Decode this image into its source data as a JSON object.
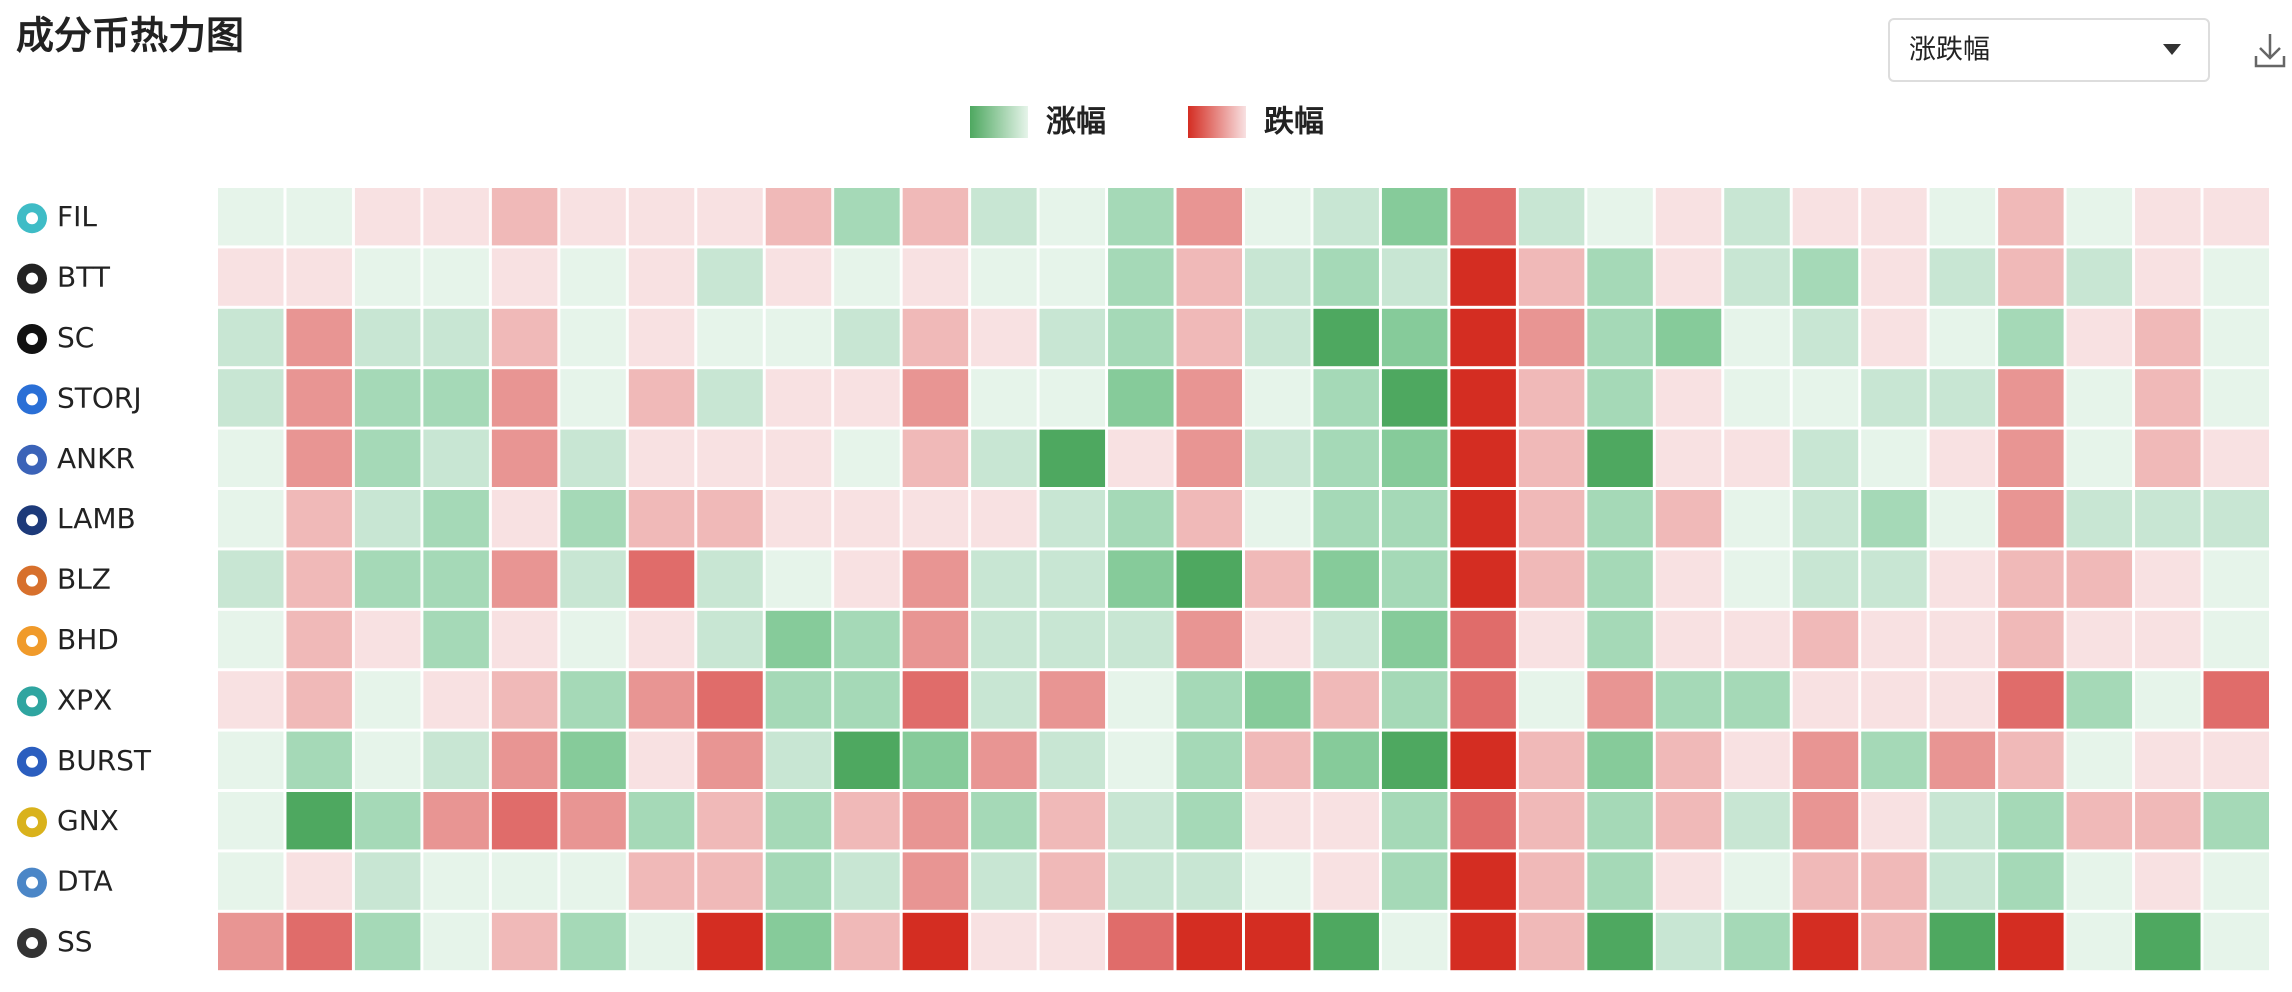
{
  "header": {
    "title": "成分币热力图"
  },
  "dropdown": {
    "selected": "涨跌幅"
  },
  "legend": {
    "items": [
      {
        "label": "涨幅",
        "colors": [
          "#4ea860",
          "#e6f4ea"
        ]
      },
      {
        "label": "跌幅",
        "colors": [
          "#d42d22",
          "#f8e1e2"
        ]
      }
    ]
  },
  "heatmap": {
    "colors": {
      "-5": "#d42d22",
      "-4": "#e06c6a",
      "-3": "#e89593",
      "-2": "#f0b9b8",
      "-1": "#f8e1e2",
      "1": "#e6f4ea",
      "2": "#c8e6d3",
      "3": "#a5d9b7",
      "4": "#86cb9a",
      "5": "#4ea860"
    },
    "rows": [
      {
        "name": "FIL",
        "values": [
          1,
          1,
          -1,
          -1,
          -2,
          -1,
          -1,
          -1,
          -2,
          3,
          -2,
          2,
          1,
          3,
          -3,
          1,
          2,
          4,
          -4,
          2,
          1,
          -1,
          2,
          -1,
          -1,
          1,
          -2,
          1,
          -1,
          -1
        ]
      },
      {
        "name": "BTT",
        "values": [
          -1,
          -1,
          1,
          1,
          -1,
          1,
          -1,
          2,
          -1,
          1,
          -1,
          1,
          1,
          3,
          -2,
          2,
          3,
          2,
          -5,
          -2,
          3,
          -1,
          2,
          3,
          -1,
          2,
          -2,
          2,
          -1,
          1
        ]
      },
      {
        "name": "SC",
        "values": [
          2,
          -3,
          2,
          2,
          -2,
          1,
          -1,
          1,
          1,
          2,
          -2,
          -1,
          2,
          3,
          -2,
          2,
          5,
          4,
          -5,
          -3,
          3,
          4,
          1,
          2,
          -1,
          1,
          3,
          -1,
          -2,
          1
        ]
      },
      {
        "name": "STORJ",
        "values": [
          2,
          -3,
          3,
          3,
          -3,
          1,
          -2,
          2,
          -1,
          -1,
          -3,
          1,
          1,
          4,
          -3,
          1,
          3,
          5,
          -5,
          -2,
          3,
          -1,
          1,
          1,
          2,
          2,
          -3,
          1,
          -2,
          1
        ]
      },
      {
        "name": "ANKR",
        "values": [
          1,
          -3,
          3,
          2,
          -3,
          2,
          -1,
          -1,
          -1,
          1,
          -2,
          2,
          5,
          -1,
          -3,
          2,
          3,
          4,
          -5,
          -2,
          5,
          -1,
          -1,
          2,
          1,
          -1,
          -3,
          1,
          -2,
          -1
        ]
      },
      {
        "name": "LAMB",
        "values": [
          1,
          -2,
          2,
          3,
          -1,
          3,
          -2,
          -2,
          -1,
          -1,
          -1,
          -1,
          2,
          3,
          -2,
          1,
          3,
          3,
          -5,
          -2,
          3,
          -2,
          1,
          2,
          3,
          1,
          -3,
          2,
          2,
          2
        ]
      },
      {
        "name": "BLZ",
        "values": [
          2,
          -2,
          3,
          3,
          -3,
          2,
          -4,
          2,
          1,
          -1,
          -3,
          2,
          2,
          4,
          5,
          -2,
          4,
          3,
          -5,
          -2,
          3,
          -1,
          1,
          2,
          2,
          -1,
          -2,
          -2,
          -1,
          1
        ]
      },
      {
        "name": "BHD",
        "values": [
          1,
          -2,
          -1,
          3,
          -1,
          1,
          -1,
          2,
          4,
          3,
          -3,
          2,
          2,
          2,
          -3,
          -1,
          2,
          4,
          -4,
          -1,
          3,
          -1,
          -1,
          -2,
          -1,
          -1,
          -2,
          -1,
          -1,
          1
        ]
      },
      {
        "name": "XPX",
        "values": [
          -1,
          -2,
          1,
          -1,
          -2,
          3,
          -3,
          -4,
          3,
          3,
          -4,
          2,
          -3,
          1,
          3,
          4,
          -2,
          3,
          -4,
          1,
          -3,
          3,
          3,
          -1,
          -1,
          -1,
          -4,
          3,
          1,
          -4
        ]
      },
      {
        "name": "BURST",
        "values": [
          1,
          3,
          1,
          2,
          -3,
          4,
          -1,
          -3,
          2,
          5,
          4,
          -3,
          2,
          1,
          3,
          -2,
          4,
          5,
          -5,
          -2,
          4,
          -2,
          -1,
          -3,
          3,
          -3,
          -2,
          1,
          -1,
          -1
        ]
      },
      {
        "name": "GNX",
        "values": [
          1,
          5,
          3,
          -3,
          -4,
          -3,
          3,
          -2,
          3,
          -2,
          -3,
          3,
          -2,
          2,
          3,
          -1,
          -1,
          3,
          -4,
          -2,
          3,
          -2,
          2,
          -3,
          -1,
          2,
          3,
          -2,
          -2,
          3
        ]
      },
      {
        "name": "DTA",
        "values": [
          1,
          -1,
          2,
          1,
          1,
          1,
          -2,
          -2,
          3,
          2,
          -3,
          2,
          -2,
          2,
          2,
          1,
          -1,
          3,
          -5,
          -2,
          3,
          -1,
          1,
          -2,
          -2,
          2,
          3,
          1,
          -1,
          1
        ]
      },
      {
        "name": "SS",
        "values": [
          -3,
          -4,
          3,
          1,
          -2,
          3,
          1,
          -5,
          4,
          -2,
          -5,
          -1,
          -1,
          -4,
          -5,
          -5,
          5,
          1,
          -5,
          -2,
          5,
          2,
          3,
          -5,
          -2,
          5,
          -5,
          1,
          5,
          1
        ]
      }
    ]
  }
}
